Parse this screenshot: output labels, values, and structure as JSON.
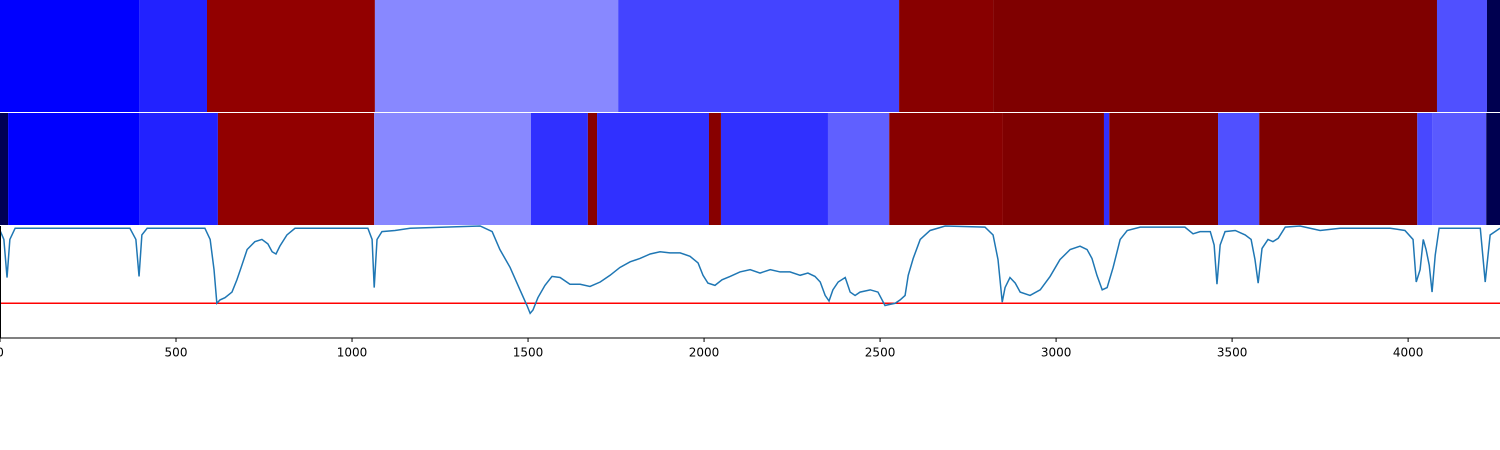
{
  "chart_data": [
    {
      "type": "segments",
      "bounds": [
        0,
        395,
        588,
        1065,
        1756,
        2554,
        2821,
        4082,
        4224,
        4261
      ],
      "colors": [
        "#0000ff",
        "#2222ff",
        "#920000",
        "#8888ff",
        "#4444ff",
        "#880000",
        "#7f0000",
        "#5050ff",
        "#000050"
      ]
    },
    {
      "type": "segments",
      "bounds": [
        0,
        23,
        395,
        619,
        1063,
        1508,
        1670,
        1696,
        2014,
        2048,
        2352,
        2526,
        2849,
        3136,
        3151,
        3460,
        3577,
        4026,
        4068,
        4222,
        4261
      ],
      "colors": [
        "#000055",
        "#0000ff",
        "#2222ff",
        "#920000",
        "#8888ff",
        "#3030ff",
        "#880000",
        "#3030ff",
        "#880000",
        "#3030ff",
        "#6060ff",
        "#880000",
        "#7f0000",
        "#3030ff",
        "#800000",
        "#5050ff",
        "#7f0000",
        "#4848ff",
        "#5a5aff",
        "#000050"
      ]
    },
    {
      "type": "line",
      "color": "#1f77b4",
      "x": [
        0,
        11,
        20,
        28,
        43,
        369,
        386,
        395,
        403,
        418,
        582,
        597,
        608,
        616,
        625,
        639,
        659,
        673,
        685,
        702,
        724,
        744,
        761,
        773,
        784,
        795,
        815,
        838,
        1045,
        1057,
        1063,
        1071,
        1085,
        1122,
        1165,
        1364,
        1398,
        1420,
        1449,
        1477,
        1497,
        1506,
        1514,
        1528,
        1548,
        1568,
        1591,
        1619,
        1648,
        1676,
        1705,
        1733,
        1761,
        1790,
        1818,
        1847,
        1875,
        1903,
        1932,
        1960,
        1983,
        1997,
        2011,
        2031,
        2051,
        2074,
        2102,
        2131,
        2159,
        2188,
        2216,
        2244,
        2273,
        2295,
        2315,
        2330,
        2344,
        2355,
        2366,
        2381,
        2401,
        2415,
        2429,
        2443,
        2472,
        2494,
        2514,
        2528,
        2543,
        2557,
        2571,
        2580,
        2594,
        2614,
        2642,
        2685,
        2798,
        2821,
        2835,
        2847,
        2855,
        2869,
        2884,
        2898,
        2926,
        2955,
        2983,
        3011,
        3040,
        3068,
        3088,
        3102,
        3116,
        3131,
        3145,
        3162,
        3182,
        3202,
        3239,
        3366,
        3389,
        3409,
        3438,
        3449,
        3457,
        3466,
        3480,
        3509,
        3537,
        3554,
        3565,
        3574,
        3585,
        3602,
        3616,
        3631,
        3651,
        3693,
        3750,
        3807,
        3949,
        3991,
        4014,
        4023,
        4034,
        4043,
        4051,
        4060,
        4068,
        4077,
        4088,
        4205,
        4219,
        4233,
        4261
      ],
      "values": [
        0.96,
        0.88,
        0.54,
        0.88,
        0.98,
        0.98,
        0.88,
        0.55,
        0.92,
        0.98,
        0.98,
        0.88,
        0.61,
        0.31,
        0.34,
        0.36,
        0.41,
        0.52,
        0.63,
        0.79,
        0.86,
        0.88,
        0.84,
        0.77,
        0.75,
        0.82,
        0.92,
        0.98,
        0.98,
        0.88,
        0.45,
        0.88,
        0.95,
        0.96,
        0.98,
        1.0,
        0.95,
        0.79,
        0.63,
        0.43,
        0.29,
        0.22,
        0.25,
        0.36,
        0.47,
        0.55,
        0.54,
        0.48,
        0.48,
        0.46,
        0.5,
        0.56,
        0.63,
        0.68,
        0.71,
        0.75,
        0.77,
        0.76,
        0.76,
        0.73,
        0.67,
        0.56,
        0.49,
        0.47,
        0.52,
        0.55,
        0.59,
        0.61,
        0.58,
        0.61,
        0.59,
        0.59,
        0.56,
        0.58,
        0.55,
        0.5,
        0.38,
        0.33,
        0.43,
        0.5,
        0.54,
        0.41,
        0.38,
        0.41,
        0.43,
        0.41,
        0.29,
        0.3,
        0.31,
        0.34,
        0.38,
        0.56,
        0.71,
        0.88,
        0.96,
        1.0,
        0.99,
        0.92,
        0.7,
        0.32,
        0.45,
        0.54,
        0.49,
        0.41,
        0.38,
        0.43,
        0.55,
        0.7,
        0.79,
        0.82,
        0.79,
        0.71,
        0.56,
        0.43,
        0.45,
        0.63,
        0.88,
        0.96,
        0.99,
        0.99,
        0.93,
        0.95,
        0.95,
        0.83,
        0.48,
        0.83,
        0.95,
        0.96,
        0.92,
        0.88,
        0.7,
        0.49,
        0.8,
        0.88,
        0.86,
        0.89,
        0.99,
        1.0,
        0.96,
        0.98,
        0.98,
        0.96,
        0.88,
        0.5,
        0.61,
        0.88,
        0.79,
        0.65,
        0.41,
        0.74,
        0.98,
        0.98,
        0.5,
        0.92,
        0.98
      ],
      "hline": {
        "value": 0.31,
        "color": "#ff0000"
      },
      "xlim": [
        0,
        4261
      ],
      "ylim": [
        0,
        1
      ],
      "xticks": [
        0,
        500,
        1000,
        1500,
        2000,
        2500,
        3000,
        3500,
        4000
      ]
    }
  ]
}
